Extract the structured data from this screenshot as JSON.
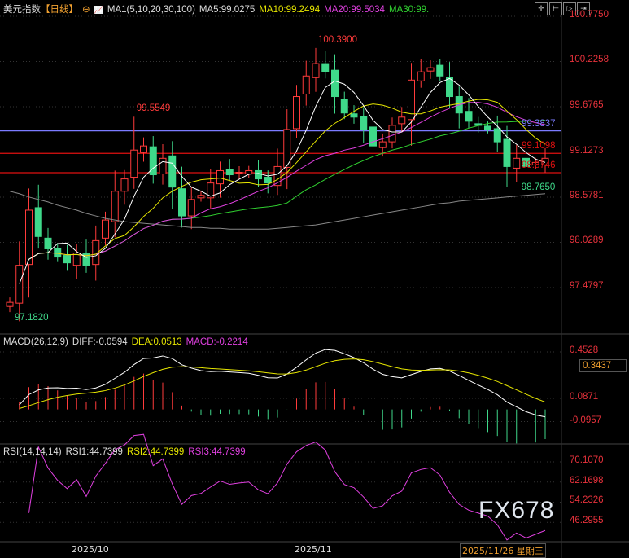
{
  "header": {
    "symbol": "美元指数",
    "period": "【日线】",
    "indicator": "MA1(5,10,20,30,100)",
    "ma5": "MA5:99.0275",
    "ma10": "MA10:99.2494",
    "ma20": "MA20:99.5034",
    "ma30": "MA30:99."
  },
  "macd_header": {
    "name": "MACD(26,12,9)",
    "diff": "DIFF:-0.0594",
    "dea": "DEA:0.0513",
    "macd": "MACD:-0.2214"
  },
  "rsi_header": {
    "name": "RSI(14,14,14)",
    "rsi1": "RSI1:44.7399",
    "rsi2": "RSI2:44.7399",
    "rsi3": "RSI3:44.7399"
  },
  "colors": {
    "up": "#ff3b3b",
    "down": "#3fd98a",
    "ma5": "#ffffff",
    "ma10": "#e6e600",
    "ma20": "#e040e0",
    "ma30": "#30d030",
    "ma100": "#888888",
    "axis": "#e8323c",
    "hline_blue": "#7b7bff",
    "hline_red": "#e01010"
  },
  "watermark": "FX678",
  "toolbar_icons": [
    "crosshair-icon",
    "zoom-range-icon",
    "play-icon",
    "next-icon"
  ],
  "chart_data": [
    {
      "type": "candlestick",
      "title": "",
      "yticks": [
        "100.7750",
        "100.2258",
        "99.6765",
        "99.1273",
        "98.5781",
        "98.0289",
        "97.4797"
      ],
      "ylim": [
        97.0,
        100.85
      ],
      "annotations": [
        {
          "text": "99.5549",
          "value": 99.5549
        },
        {
          "text": "100.3900",
          "value": 100.39
        },
        {
          "text": "97.1820",
          "value": 97.182
        },
        {
          "text": "98.7650",
          "value": 98.765
        }
      ],
      "hlines": [
        {
          "value": 99.3837,
          "label": "99.3837",
          "color": "blue"
        },
        {
          "value": 99.1098,
          "label": "99.1098",
          "color": "red"
        },
        {
          "value": 98.8746,
          "label": "98.8746",
          "color": "red"
        }
      ],
      "closes": [
        97.3,
        97.75,
        98.42,
        98.1,
        97.95,
        97.85,
        97.78,
        97.9,
        97.75,
        98.05,
        98.3,
        98.65,
        98.8,
        99.15,
        99.2,
        98.85,
        99.05,
        98.7,
        98.35,
        98.55,
        98.6,
        98.75,
        98.9,
        98.85,
        98.88,
        98.9,
        98.8,
        98.75,
        98.95,
        99.4,
        99.8,
        100.05,
        100.2,
        100.1,
        99.8,
        99.6,
        99.55,
        99.4,
        99.2,
        99.25,
        99.45,
        99.55,
        100.0,
        100.1,
        100.15,
        100.05,
        99.8,
        99.6,
        99.5,
        99.45,
        99.4,
        99.25,
        98.95,
        99.05,
        98.95,
        99.0,
        99.05
      ],
      "ma100": [
        98.65,
        98.62,
        98.58,
        98.55,
        98.52,
        98.48,
        98.45,
        98.42,
        98.38,
        98.35,
        98.32,
        98.3,
        98.28,
        98.27,
        98.26,
        98.25,
        98.24,
        98.23,
        98.22,
        98.21,
        98.21,
        98.2,
        98.2,
        98.19,
        98.19,
        98.19,
        98.19,
        98.19,
        98.2,
        98.21,
        98.22,
        98.23,
        98.24,
        98.26,
        98.28,
        98.3,
        98.32,
        98.34,
        98.36,
        98.38,
        98.4,
        98.42,
        98.44,
        98.46,
        98.48,
        98.5,
        98.51,
        98.53,
        98.54,
        98.55,
        98.56,
        98.57,
        98.58,
        98.59,
        98.6,
        98.61,
        98.62
      ]
    },
    {
      "type": "macd",
      "yticks": [
        "0.4528",
        "0.3437",
        "0.0871",
        "-0.0957"
      ],
      "ylim": [
        -0.35,
        0.6
      ]
    },
    {
      "type": "rsi",
      "yticks": [
        "70.1070",
        "62.1698",
        "54.2326",
        "46.2955"
      ],
      "ylim": [
        30,
        76
      ]
    }
  ],
  "date_axis": {
    "labels": [
      "2025/10",
      "2025/11"
    ],
    "cursor": "2025/11/26 星期三"
  }
}
